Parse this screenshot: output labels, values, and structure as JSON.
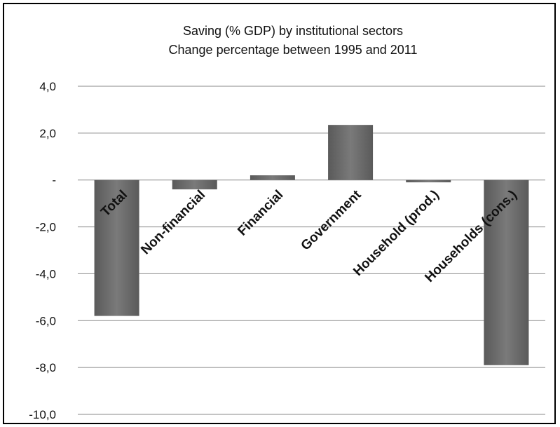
{
  "chart_data": {
    "type": "bar",
    "title": [
      "Saving (% GDP) by institutional sectors",
      "Change percentage between 1995 and 2011"
    ],
    "xlabel": "",
    "ylabel": "",
    "categories": [
      "Total",
      "Non-financial",
      "Financial",
      "Government",
      "Household (prod.)",
      "Households (cons.)"
    ],
    "values": [
      -5.8,
      -0.4,
      0.2,
      2.35,
      -0.1,
      -7.9
    ],
    "ylim": [
      -10,
      4
    ],
    "yticks": [
      4,
      2,
      0,
      -2,
      -4,
      -6,
      -8,
      -10
    ],
    "ytick_labels": [
      "4,0",
      "2,0",
      "-",
      "-2,0",
      "-4,0",
      "-6,0",
      "-8,0",
      "-10,0"
    ],
    "grid": true,
    "legend": "none",
    "bar_color": "#6e6e6e"
  }
}
